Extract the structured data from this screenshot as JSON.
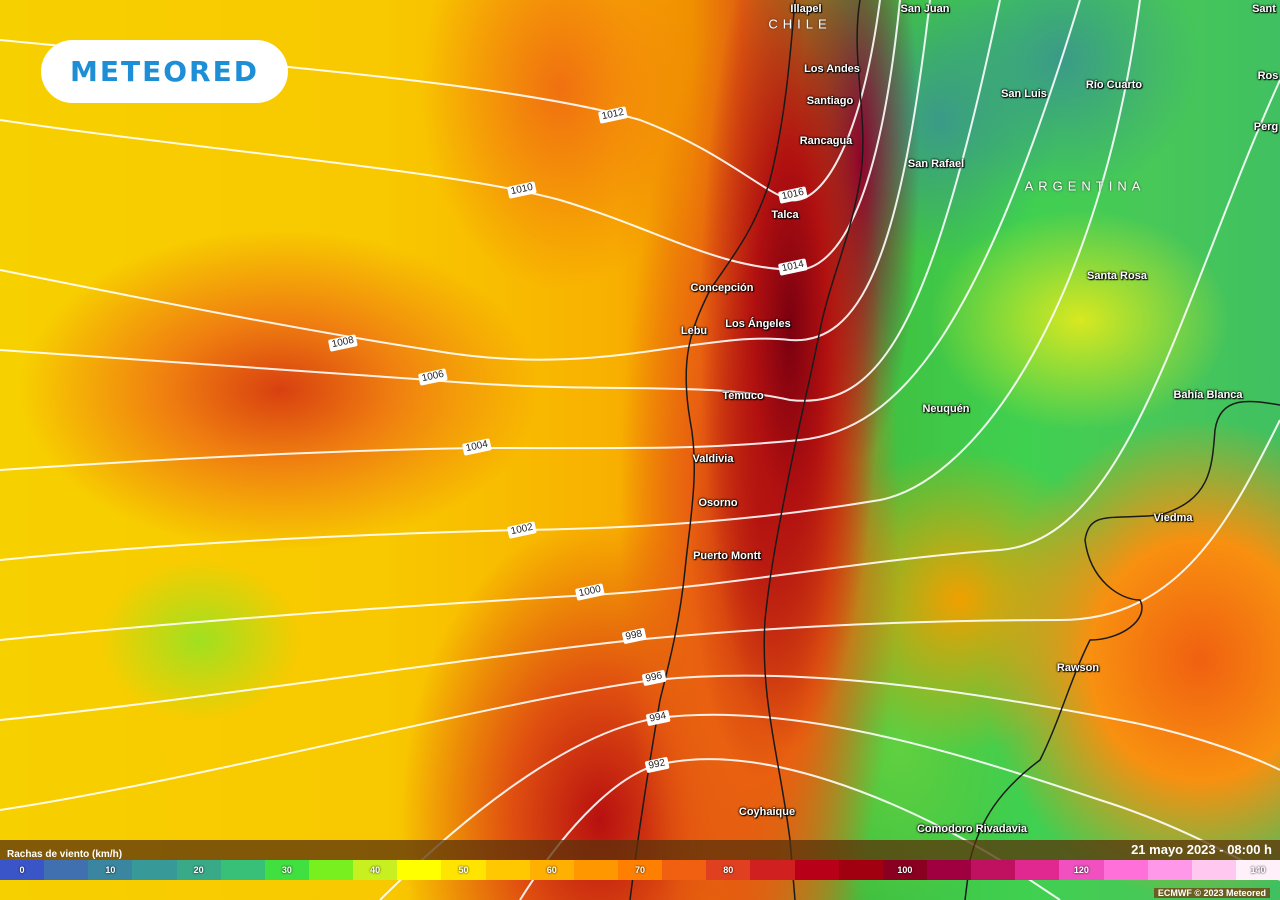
{
  "brand": {
    "logo": "METEORED"
  },
  "legend": {
    "title": "Rachas de viento (km/h)",
    "segments": [
      {
        "value": "0",
        "color": "#3a55c8"
      },
      {
        "value": "",
        "color": "#4070b0"
      },
      {
        "value": "10",
        "color": "#3a86a0"
      },
      {
        "value": "",
        "color": "#389a98"
      },
      {
        "value": "20",
        "color": "#38aa88"
      },
      {
        "value": "",
        "color": "#38c078"
      },
      {
        "value": "30",
        "color": "#40e040"
      },
      {
        "value": "",
        "color": "#78f020"
      },
      {
        "value": "40",
        "color": "#c8f020"
      },
      {
        "value": "",
        "color": "#ffff00"
      },
      {
        "value": "50",
        "color": "#ffe400"
      },
      {
        "value": "",
        "color": "#ffc800"
      },
      {
        "value": "60",
        "color": "#ffb000"
      },
      {
        "value": "",
        "color": "#ff9800"
      },
      {
        "value": "70",
        "color": "#ff8000"
      },
      {
        "value": "",
        "color": "#f06010"
      },
      {
        "value": "80",
        "color": "#e04020"
      },
      {
        "value": "",
        "color": "#d02020"
      },
      {
        "value": "",
        "color": "#b80018"
      },
      {
        "value": "",
        "color": "#a00010"
      },
      {
        "value": "100",
        "color": "#8a0020"
      },
      {
        "value": "",
        "color": "#a00040"
      },
      {
        "value": "",
        "color": "#c01060"
      },
      {
        "value": "",
        "color": "#e02890"
      },
      {
        "value": "120",
        "color": "#f050c0"
      },
      {
        "value": "",
        "color": "#ff70d8"
      },
      {
        "value": "",
        "color": "#ff98e8"
      },
      {
        "value": "",
        "color": "#ffc8f0"
      },
      {
        "value": "140",
        "color": "#fff0fa"
      }
    ]
  },
  "datetime": "21 mayo 2023 - 08:00 h",
  "credit": "ECMWF © 2023 Meteored",
  "isobars": [
    "1012",
    "1010",
    "1016",
    "1014",
    "1008",
    "1006",
    "1004",
    "1002",
    "1000",
    "998",
    "996",
    "994",
    "992"
  ],
  "countries": [
    "CHILE",
    "ARGENTINA"
  ],
  "cities": [
    "Illapel",
    "Los Andes",
    "Santiago",
    "Rancagua",
    "Talca",
    "Concepción",
    "Lebu",
    "Los Ángeles",
    "Temuco",
    "Valdivia",
    "Osorno",
    "Puerto Montt",
    "Coyhaique",
    "San Juan",
    "San Luis",
    "Río Cuarto",
    "San Rafael",
    "Santa Rosa",
    "Neuquén",
    "Bahía Blanca",
    "Viedma",
    "Rawson",
    "Comodoro Rivadavia",
    "Sant",
    "Ros",
    "Perg"
  ]
}
